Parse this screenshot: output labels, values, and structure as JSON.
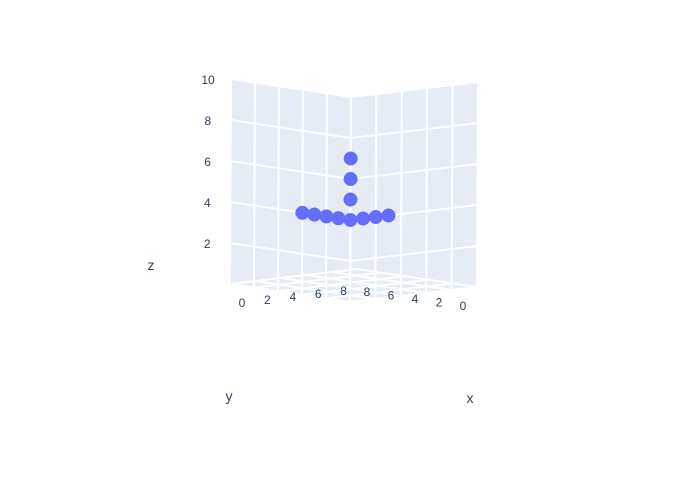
{
  "chart_data": {
    "type": "scatter3d",
    "x_axis": {
      "title": "x",
      "ticks": [
        "0",
        "2",
        "4",
        "6",
        "8"
      ],
      "range": [
        0,
        10
      ]
    },
    "y_axis": {
      "title": "y",
      "ticks": [
        "0",
        "2",
        "4",
        "6",
        "8"
      ],
      "range": [
        0,
        10
      ]
    },
    "z_axis": {
      "title": "z",
      "ticks": [
        "2",
        "4",
        "6",
        "8",
        "10"
      ],
      "range": [
        0,
        10
      ]
    },
    "points": [
      {
        "x": 0,
        "y": 0,
        "z": 7
      },
      {
        "x": 0,
        "y": 0,
        "z": 6
      },
      {
        "x": 0,
        "y": 0,
        "z": 5
      },
      {
        "x": 0,
        "y": 0,
        "z": 4
      },
      {
        "x": 0,
        "y": 1,
        "z": 4
      },
      {
        "x": 1,
        "y": 0,
        "z": 4
      },
      {
        "x": 2,
        "y": 0,
        "z": 4
      },
      {
        "x": 3,
        "y": 0,
        "z": 4
      },
      {
        "x": 0,
        "y": 2,
        "z": 4
      },
      {
        "x": 0,
        "y": 3,
        "z": 4
      },
      {
        "x": 0,
        "y": 4,
        "z": 4
      }
    ],
    "marker_color": "#636efa",
    "background_color": "#e5ecf6",
    "grid_color": "#ffffff",
    "text_color": "#2a3f5f"
  }
}
